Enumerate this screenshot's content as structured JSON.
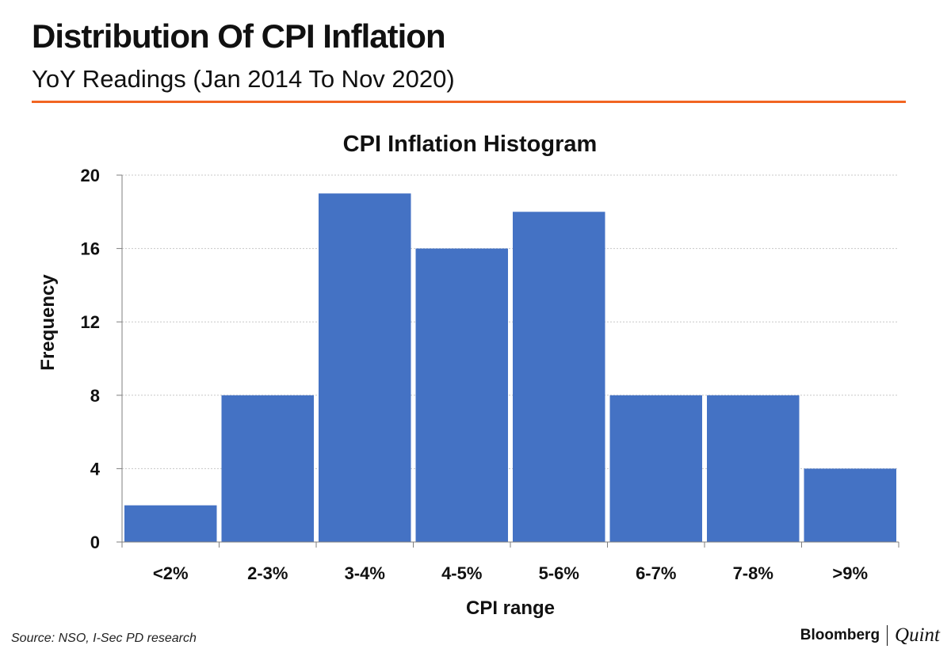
{
  "header": {
    "title": "Distribution Of CPI Inflation",
    "subtitle": "YoY Readings (Jan 2014 To Nov 2020)",
    "accent_color": "#f26522"
  },
  "chart_data": {
    "type": "bar",
    "title": "CPI Inflation Histogram",
    "xlabel": "CPI range",
    "ylabel": "Frequency",
    "categories": [
      "<2%",
      "2-3%",
      "3-4%",
      "4-5%",
      "5-6%",
      "6-7%",
      "7-8%",
      ">9%"
    ],
    "values": [
      2,
      8,
      19,
      16,
      18,
      8,
      8,
      4
    ],
    "ylim": [
      0,
      20
    ],
    "yticks": [
      0,
      4,
      8,
      12,
      16,
      20
    ],
    "grid": true,
    "bar_color": "#4472c4"
  },
  "footer": {
    "source": "Source: NSO, I-Sec PD research",
    "logo_left": "Bloomberg",
    "logo_right": "Quint"
  }
}
